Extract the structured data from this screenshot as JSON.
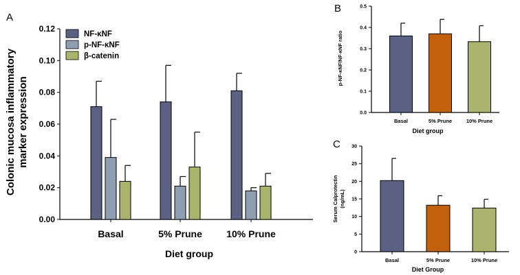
{
  "chart_data": [
    {
      "panel": "A",
      "type": "bar",
      "categories": [
        "Basal",
        "5% Prune",
        "10% Prune"
      ],
      "series": [
        {
          "name": "NF-κNF",
          "color": "#5a6182",
          "values": [
            0.071,
            0.074,
            0.081
          ],
          "errors": [
            0.016,
            0.023,
            0.011
          ]
        },
        {
          "name": "p-NF-κNF",
          "color": "#8d9eb0",
          "values": [
            0.039,
            0.021,
            0.018
          ],
          "errors": [
            0.024,
            0.006,
            0.002
          ]
        },
        {
          "name": "β-catenin",
          "color": "#aab46a",
          "values": [
            0.024,
            0.033,
            0.021
          ],
          "errors": [
            0.01,
            0.022,
            0.008
          ]
        }
      ],
      "ylim": [
        0,
        0.12
      ],
      "yticks": [
        "0.00",
        "0.02",
        "0.04",
        "0.06",
        "0.08",
        "0.10",
        "0.12"
      ],
      "xlabel": "Diet group",
      "ylabel_lines": [
        "Colonic mucosa inflammatory",
        "marker expression"
      ],
      "legend": "top-left"
    },
    {
      "panel": "B",
      "type": "bar",
      "categories": [
        "Basal",
        "5% Prune",
        "10% Prune"
      ],
      "values": [
        0.36,
        0.37,
        0.333
      ],
      "errors": [
        0.06,
        0.068,
        0.075
      ],
      "colors": [
        "#5a6182",
        "#c2600c",
        "#aab46a"
      ],
      "ylim": [
        0,
        0.5
      ],
      "yticks": [
        "0.0",
        "0.1",
        "0.2",
        "0.3",
        "0.4",
        "0.5"
      ],
      "xlabel": "Diet group",
      "ylabel": "p-NF-κNF/NF-κNF ratio"
    },
    {
      "panel": "C",
      "type": "bar",
      "categories": [
        "Basal",
        "5% Prune",
        "10% Prune"
      ],
      "values": [
        20.2,
        13.2,
        12.4
      ],
      "errors": [
        6.3,
        2.7,
        2.5
      ],
      "colors": [
        "#5a6182",
        "#c2600c",
        "#aab46a"
      ],
      "ylim": [
        0,
        30
      ],
      "yticks": [
        "0",
        "5",
        "10",
        "15",
        "20",
        "25",
        "30"
      ],
      "xlabel": "Diet Group",
      "ylabel_lines": [
        "Serum Calprotectin",
        "(ng/mL)"
      ]
    }
  ]
}
